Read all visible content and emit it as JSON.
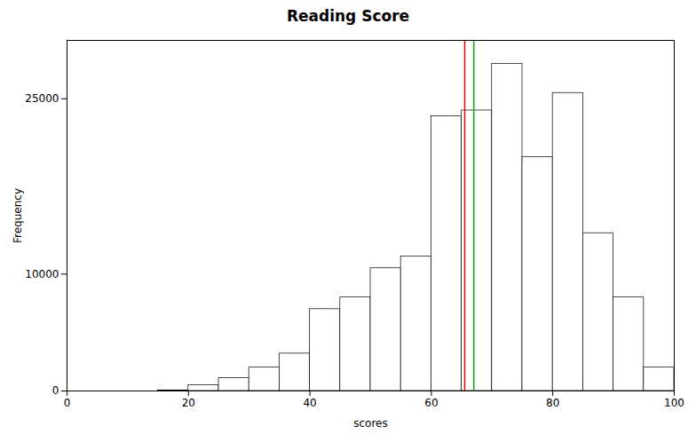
{
  "chart_data": {
    "type": "histogram",
    "title": "Reading Score",
    "xlabel": "scores",
    "ylabel": "Frequency",
    "bins": [
      0,
      5,
      10,
      15,
      20,
      25,
      30,
      35,
      40,
      45,
      50,
      55,
      60,
      65,
      70,
      75,
      80,
      85,
      90,
      95,
      100
    ],
    "values": [
      0,
      0,
      0,
      50,
      500,
      1100,
      2000,
      3200,
      7000,
      8000,
      10500,
      11500,
      23500,
      24000,
      28000,
      20000,
      25500,
      13500,
      8000,
      2000
    ],
    "color": "#ffffff",
    "lines": [
      {
        "x": 65.5,
        "color": "#ff0000"
      },
      {
        "x": 67.0,
        "color": "#00bb00"
      }
    ],
    "xlim": [
      0,
      100
    ],
    "ylim": [
      0,
      30000
    ],
    "xticks": [
      0,
      20,
      40,
      60,
      80,
      100
    ],
    "yticks": [
      0,
      10000,
      25000
    ],
    "grid": false
  }
}
